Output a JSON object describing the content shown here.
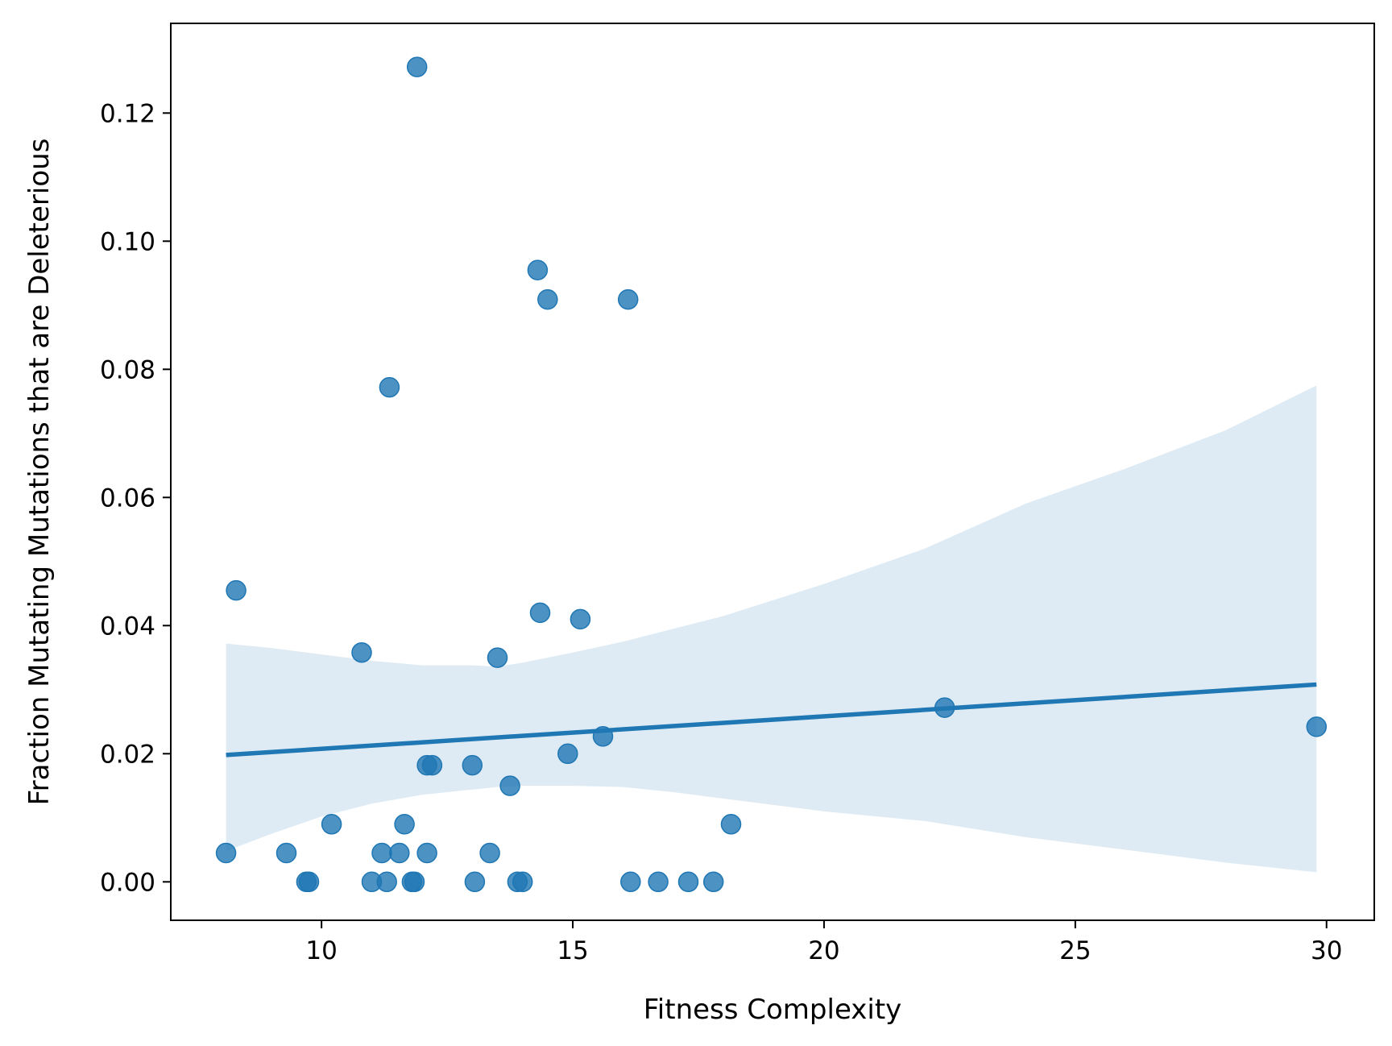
{
  "chart_data": {
    "type": "scatter",
    "title": "",
    "xlabel": "Fitness Complexity",
    "ylabel": "Fraction Mutating Mutations that are Deleterious",
    "xlim": [
      7.0,
      30.95
    ],
    "ylim": [
      -0.006,
      0.134
    ],
    "x_ticks": [
      10,
      15,
      20,
      25,
      30
    ],
    "y_ticks": [
      0.0,
      0.02,
      0.04,
      0.06,
      0.08,
      0.1,
      0.12
    ],
    "x_tick_labels": [
      "10",
      "15",
      "20",
      "25",
      "30"
    ],
    "y_tick_labels": [
      "0.00",
      "0.02",
      "0.04",
      "0.06",
      "0.08",
      "0.10",
      "0.12"
    ],
    "grid": false,
    "legend": "none",
    "colors": {
      "points": "#1f77b4",
      "regression_line": "#1f77b4",
      "confidence_band": "#1f77b4"
    },
    "series": [
      {
        "points": [
          [
            8.1,
            0.0045
          ],
          [
            8.3,
            0.0455
          ],
          [
            9.3,
            0.0045
          ],
          [
            9.7,
            0.0
          ],
          [
            9.75,
            0.0
          ],
          [
            10.2,
            0.009
          ],
          [
            10.8,
            0.0358
          ],
          [
            11.0,
            0.0
          ],
          [
            11.2,
            0.0045
          ],
          [
            11.3,
            0.0
          ],
          [
            11.35,
            0.0772
          ],
          [
            11.55,
            0.0045
          ],
          [
            11.65,
            0.009
          ],
          [
            11.8,
            0.0
          ],
          [
            11.85,
            0.0
          ],
          [
            11.9,
            0.1272
          ],
          [
            12.1,
            0.0182
          ],
          [
            12.1,
            0.0045
          ],
          [
            12.2,
            0.0182
          ],
          [
            13.0,
            0.0182
          ],
          [
            13.05,
            0.0
          ],
          [
            13.35,
            0.0045
          ],
          [
            13.5,
            0.035
          ],
          [
            13.75,
            0.015
          ],
          [
            13.9,
            0.0
          ],
          [
            14.0,
            0.0
          ],
          [
            14.3,
            0.0955
          ],
          [
            14.35,
            0.042
          ],
          [
            14.5,
            0.0909
          ],
          [
            14.9,
            0.02
          ],
          [
            15.15,
            0.041
          ],
          [
            15.6,
            0.0227
          ],
          [
            16.1,
            0.0909
          ],
          [
            16.15,
            0.0
          ],
          [
            16.7,
            0.0
          ],
          [
            17.3,
            0.0
          ],
          [
            17.8,
            0.0
          ],
          [
            18.15,
            0.009
          ],
          [
            22.4,
            0.0272
          ],
          [
            29.8,
            0.0242
          ]
        ]
      }
    ],
    "regression": {
      "x_range": [
        8.1,
        29.8
      ],
      "y_at_range": [
        0.0198,
        0.0308
      ],
      "confidence_band": {
        "x": [
          8.1,
          9.0,
          10.0,
          11.0,
          12.0,
          13.0,
          13.5,
          14.0,
          15.0,
          16.0,
          17.0,
          18.0,
          19.0,
          20.0,
          22.0,
          24.0,
          26.0,
          28.0,
          29.8
        ],
        "upper": [
          0.0372,
          0.0365,
          0.0355,
          0.0345,
          0.0338,
          0.0338,
          0.0336,
          0.0342,
          0.0358,
          0.0375,
          0.0395,
          0.0415,
          0.044,
          0.0465,
          0.052,
          0.059,
          0.0645,
          0.0705,
          0.0775
        ],
        "lower": [
          0.0048,
          0.0075,
          0.0102,
          0.0122,
          0.0136,
          0.0144,
          0.0148,
          0.015,
          0.015,
          0.0148,
          0.014,
          0.013,
          0.012,
          0.011,
          0.0095,
          0.007,
          0.005,
          0.003,
          0.0015
        ]
      }
    }
  }
}
